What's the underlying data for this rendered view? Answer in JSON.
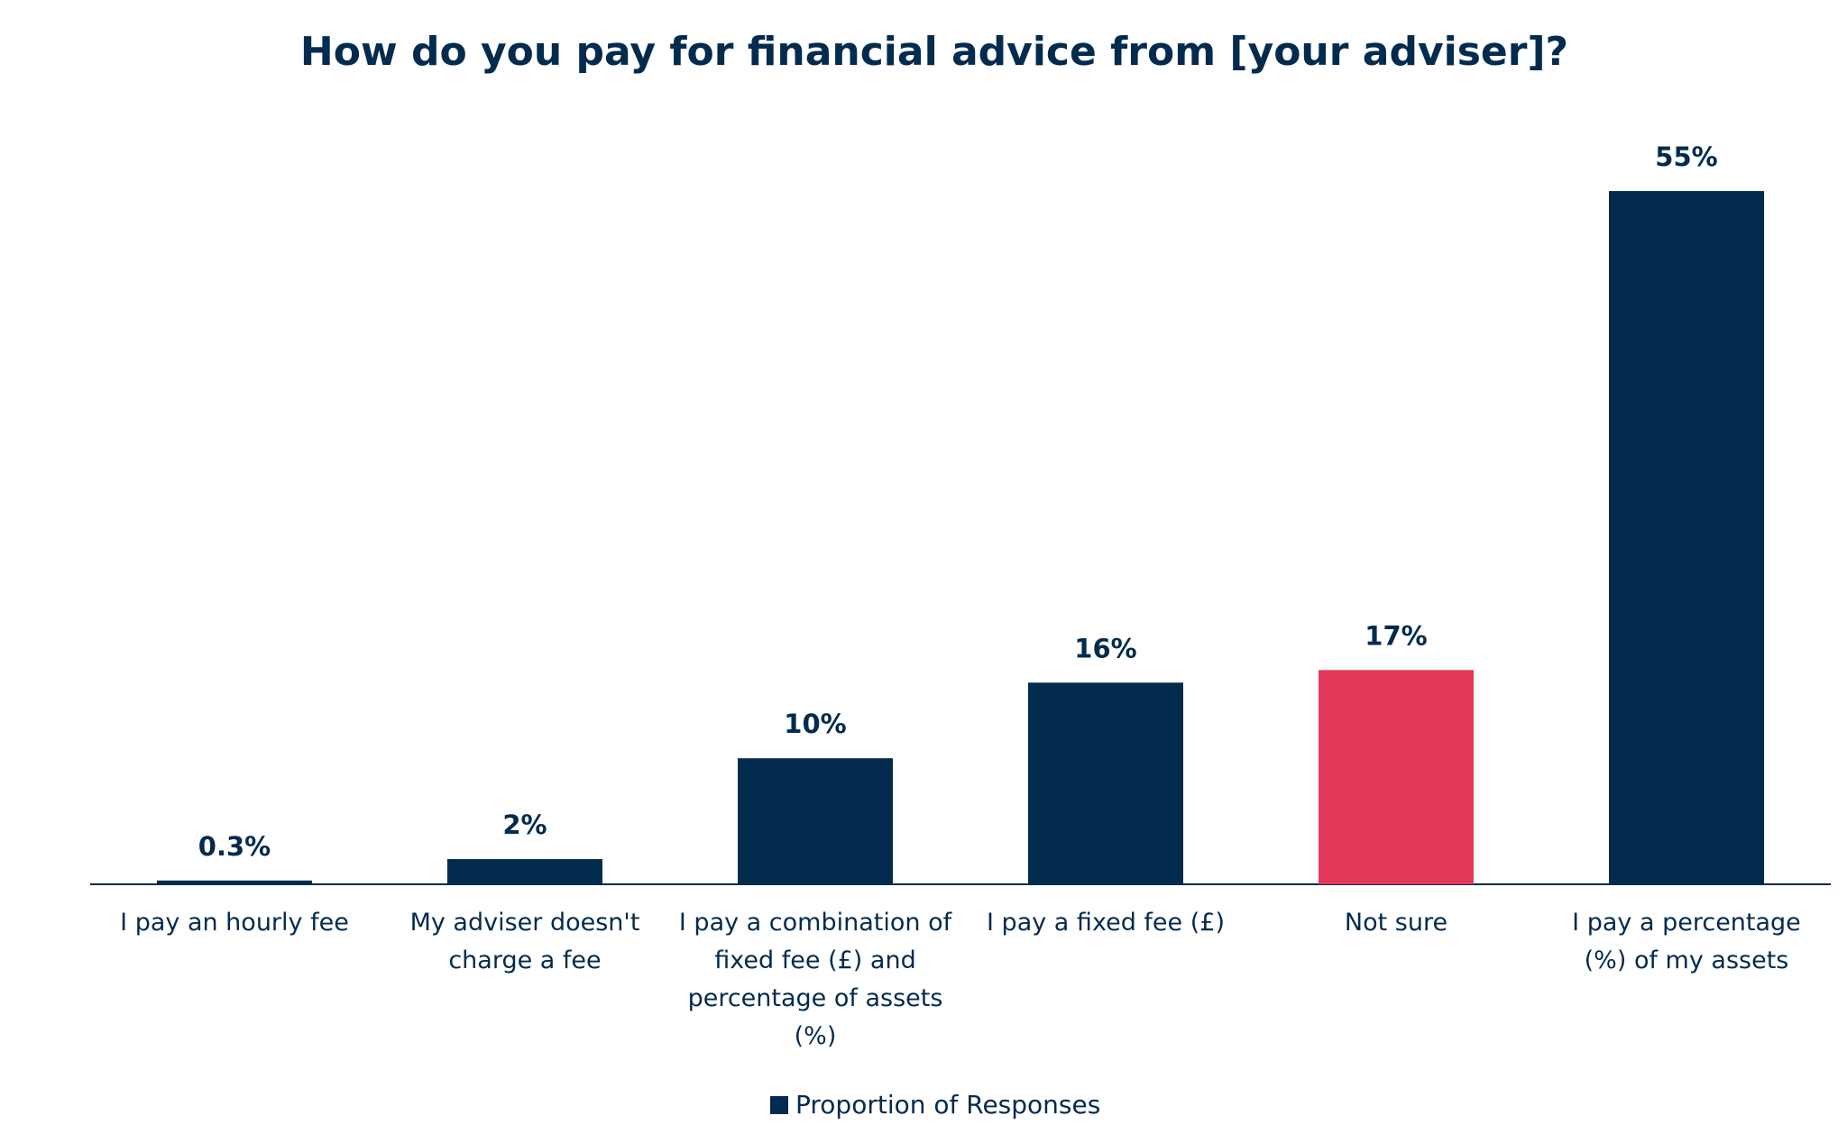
{
  "chart_data": {
    "type": "bar",
    "title": "How do you pay for financial advice from [your adviser]?",
    "categories": [
      "I pay an hourly fee",
      "My adviser doesn't charge a fee",
      "I pay a combination of fixed fee (£) and percentage of assets (%)",
      "I pay a fixed fee (£)",
      "Not sure",
      "I pay a percentage (%) of my assets"
    ],
    "series": [
      {
        "name": "Proportion of Responses",
        "color": "#032b4e",
        "colors": [
          "#032b4e",
          "#032b4e",
          "#032b4e",
          "#032b4e",
          "#e33a5a",
          "#032b4e"
        ],
        "values": [
          0.3,
          2,
          10,
          16,
          17,
          55
        ],
        "value_labels": [
          "0.3%",
          "2%",
          "10%",
          "16%",
          "17%",
          "55%"
        ]
      }
    ],
    "legend": "bottom"
  }
}
